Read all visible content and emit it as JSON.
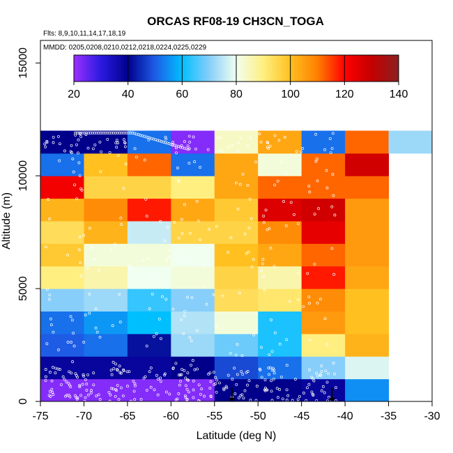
{
  "header": {
    "title": "ORCAS RF08-19 CH3CN_TOGA",
    "flights_note": "Flts: 8,9,10,11,14,17,18,19",
    "dates_note": "MMDD: 0205,0208,0210,0212,0218,0224,0225,0229"
  },
  "chart_data": {
    "type": "heatmap",
    "title": "ORCAS RF08-19 CH3CN_TOGA",
    "xlabel": "Latitude (deg N)",
    "ylabel": "Altitude (m)",
    "xlim": [
      -75,
      -30
    ],
    "ylim": [
      0,
      16000
    ],
    "x_ticks": [
      -75,
      -70,
      -65,
      -60,
      -55,
      -50,
      -45,
      -40,
      -35,
      -30
    ],
    "y_ticks": [
      0,
      5000,
      10000,
      15000
    ],
    "x_tick_labels": [
      "-75",
      "-70",
      "-65",
      "-60",
      "-55",
      "-50",
      "-45",
      "-40",
      "-35",
      "-30"
    ],
    "y_tick_labels": [
      "0",
      "5000",
      "10000",
      "15000"
    ],
    "x_bin_edges": [
      -75,
      -70,
      -65,
      -60,
      -55,
      -50,
      -45,
      -40,
      -35,
      -30
    ],
    "y_bin_edges": [
      0,
      1000,
      2000,
      3000,
      4000,
      5000,
      6000,
      7000,
      8000,
      9000,
      10000,
      11000,
      12000
    ],
    "colorbar": {
      "min": 20,
      "max": 140,
      "ticks": [
        20,
        40,
        60,
        80,
        100,
        120,
        140
      ],
      "tick_labels": [
        "20",
        "40",
        "60",
        "80",
        "100",
        "120",
        "140"
      ],
      "stops": [
        {
          "v": 20,
          "c": "#9b30ff"
        },
        {
          "v": 30,
          "c": "#2a1ae0"
        },
        {
          "v": 40,
          "c": "#00008b"
        },
        {
          "v": 50,
          "c": "#1e5ce6"
        },
        {
          "v": 60,
          "c": "#00bfff"
        },
        {
          "v": 70,
          "c": "#87cefa"
        },
        {
          "v": 80,
          "c": "#f0fff0"
        },
        {
          "v": 90,
          "c": "#ffef80"
        },
        {
          "v": 100,
          "c": "#ffc020"
        },
        {
          "v": 110,
          "c": "#ff7f00"
        },
        {
          "v": 120,
          "c": "#ff0000"
        },
        {
          "v": 130,
          "c": "#c40000"
        },
        {
          "v": 140,
          "c": "#8b2020"
        }
      ]
    },
    "grid": false,
    "values": [
      [
        22,
        22,
        22,
        22,
        40,
        40,
        38,
        55,
        null
      ],
      [
        38,
        38,
        38,
        40,
        48,
        52,
        70,
        78,
        null
      ],
      [
        50,
        52,
        42,
        72,
        68,
        62,
        90,
        102,
        null
      ],
      [
        52,
        56,
        60,
        74,
        82,
        62,
        106,
        100,
        null
      ],
      [
        70,
        72,
        64,
        70,
        94,
        92,
        108,
        100,
        null
      ],
      [
        90,
        86,
        80,
        82,
        96,
        86,
        118,
        104,
        null
      ],
      [
        98,
        82,
        82,
        80,
        100,
        104,
        112,
        106,
        null
      ],
      [
        94,
        102,
        76,
        96,
        96,
        108,
        124,
        106,
        null
      ],
      [
        102,
        108,
        118,
        104,
        98,
        126,
        128,
        106,
        null
      ],
      [
        122,
        96,
        96,
        90,
        104,
        112,
        112,
        112,
        null
      ],
      [
        52,
        100,
        112,
        52,
        104,
        82,
        112,
        128,
        null
      ],
      [
        40,
        40,
        52,
        22,
        84,
        104,
        52,
        112,
        72
      ]
    ],
    "arrows_at_latitude": [
      -53,
      -41.5
    ]
  }
}
